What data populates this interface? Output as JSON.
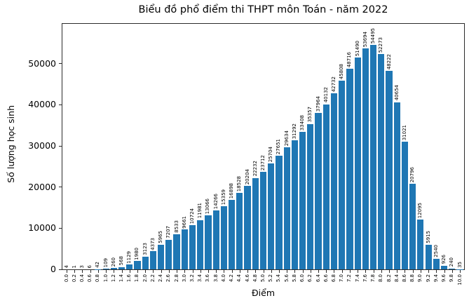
{
  "chart_data": {
    "type": "bar",
    "title": "Biểu đồ phổ điểm thi THPT môn Toán - năm 2022",
    "xlabel": "Điểm",
    "ylabel": "Số lượng học sinh",
    "categories": [
      "0.0",
      "0.2",
      "0.4",
      "0.6",
      "0.8",
      "1.0",
      "1.2",
      "1.4",
      "1.6",
      "1.8",
      "2.0",
      "2.2",
      "2.4",
      "2.6",
      "2.8",
      "3.0",
      "3.2",
      "3.4",
      "3.6",
      "3.8",
      "4.0",
      "4.2",
      "4.4",
      "4.6",
      "4.8",
      "5.0",
      "5.2",
      "5.4",
      "5.6",
      "5.8",
      "6.0",
      "6.2",
      "6.4",
      "6.6",
      "6.8",
      "7.0",
      "7.2",
      "7.4",
      "7.6",
      "7.8",
      "8.0",
      "8.2",
      "8.4",
      "8.6",
      "8.8",
      "9.0",
      "9.2",
      "9.4",
      "9.6",
      "9.8",
      "10.0"
    ],
    "values": [
      4,
      1,
      3,
      6,
      42,
      109,
      260,
      568,
      1129,
      1980,
      3123,
      4373,
      5965,
      7207,
      8533,
      9661,
      10724,
      11981,
      13066,
      14266,
      15359,
      16898,
      18528,
      20204,
      22232,
      23712,
      25704,
      27651,
      29634,
      31292,
      33408,
      35357,
      37964,
      40132,
      42732,
      45808,
      48716,
      51490,
      53694,
      54495,
      52273,
      48222,
      40654,
      31021,
      20796,
      12095,
      5915,
      2540,
      926,
      240,
      35
    ],
    "bar_labels": true,
    "yticks": [
      0,
      10000,
      20000,
      30000,
      40000,
      50000
    ],
    "ylim": [
      0,
      59660
    ],
    "grid": false,
    "legend": null,
    "bar_color": "#1f77b4",
    "axis_color": "#2b2b2b"
  }
}
